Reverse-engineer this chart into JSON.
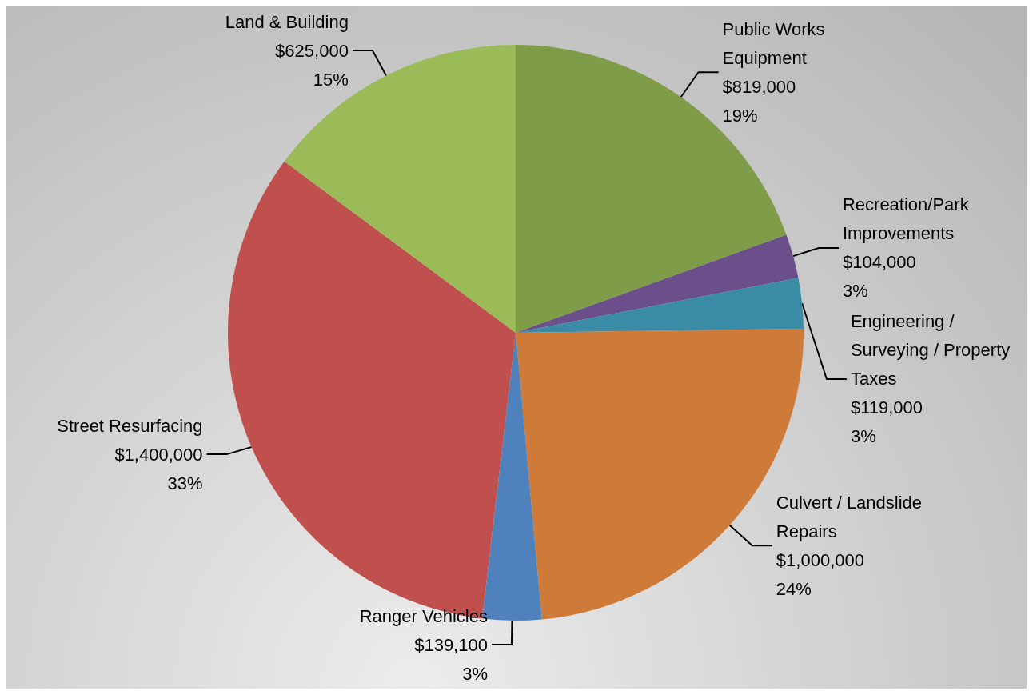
{
  "chart_data": {
    "type": "pie",
    "categories": [
      "Public Works Equipment",
      "Recreation/Park Improvements",
      "Engineering / Surveying / Property Taxes",
      "Culvert / Landslide Repairs",
      "Ranger Vehicles",
      "Street Resurfacing",
      "Land & Building"
    ],
    "values": [
      819000,
      104000,
      119000,
      1000000,
      139100,
      1400000,
      625000
    ],
    "colors": [
      "#7f9c48",
      "#6a4f8a",
      "#3a8ca6",
      "#ce7a38",
      "#4f81bd",
      "#c0504d",
      "#9bbb59"
    ],
    "value_labels": [
      "$819,000\n19%",
      "$104,000\n3%",
      "$119,000\n3%",
      "$1,000,000\n24%",
      "$139,100\n3%",
      "$1,400,000\n33%",
      "$625,000\n15%"
    ],
    "legend": false
  }
}
